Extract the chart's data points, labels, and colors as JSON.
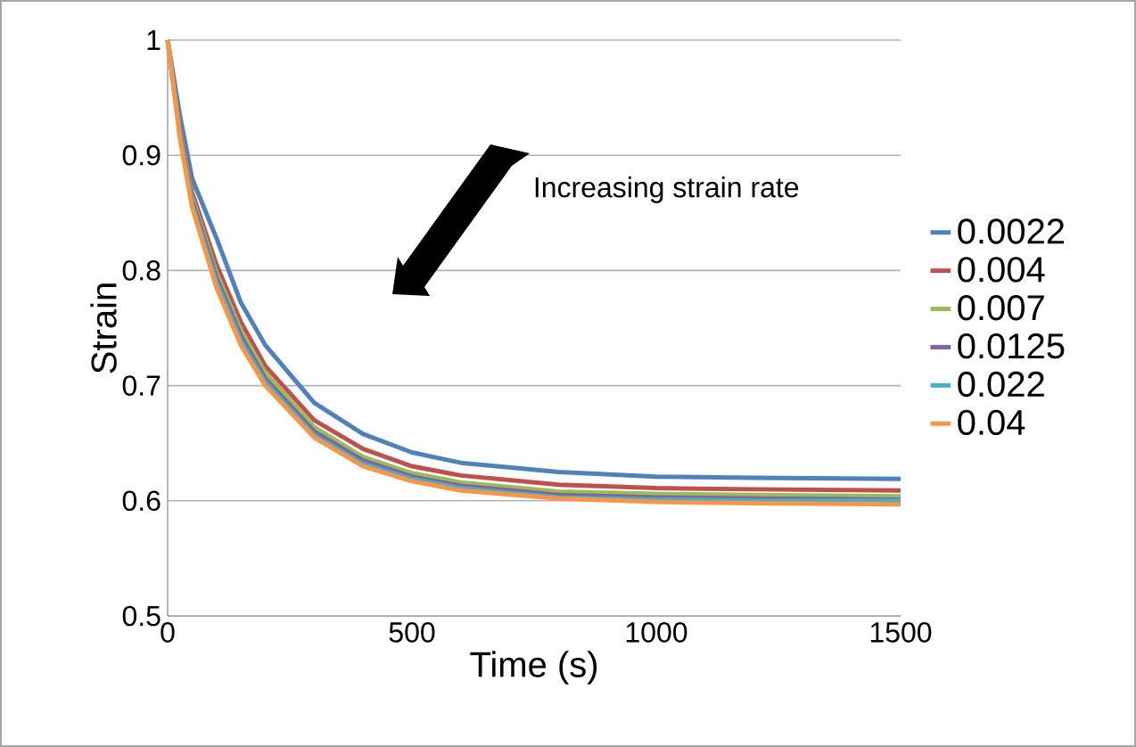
{
  "chart_data": {
    "type": "line",
    "xlabel": "Time (s)",
    "ylabel": "Strain",
    "annotations": [
      "Increasing strain rate"
    ],
    "x": [
      0,
      25,
      50,
      100,
      150,
      200,
      300,
      400,
      500,
      600,
      800,
      1000,
      1200,
      1500
    ],
    "series": [
      {
        "name": "0.0022",
        "color": "#4f81bd",
        "values": [
          1,
          0.935,
          0.88,
          0.828,
          0.772,
          0.735,
          0.685,
          0.658,
          0.642,
          0.633,
          0.625,
          0.621,
          0.62,
          0.619
        ]
      },
      {
        "name": "0.004",
        "color": "#c0504d",
        "values": [
          1,
          0.925,
          0.868,
          0.805,
          0.755,
          0.717,
          0.67,
          0.645,
          0.63,
          0.622,
          0.614,
          0.611,
          0.61,
          0.609
        ]
      },
      {
        "name": "0.007",
        "color": "#9bbb59",
        "values": [
          1,
          0.922,
          0.864,
          0.798,
          0.748,
          0.711,
          0.664,
          0.638,
          0.624,
          0.616,
          0.608,
          0.606,
          0.605,
          0.604
        ]
      },
      {
        "name": "0.0125",
        "color": "#8064a2",
        "values": [
          1,
          0.92,
          0.861,
          0.794,
          0.743,
          0.706,
          0.66,
          0.635,
          0.621,
          0.613,
          0.605,
          0.603,
          0.602,
          0.601
        ]
      },
      {
        "name": "0.022",
        "color": "#4bacc6",
        "values": [
          1,
          0.918,
          0.858,
          0.79,
          0.739,
          0.703,
          0.657,
          0.632,
          0.619,
          0.611,
          0.603,
          0.601,
          0.6,
          0.6
        ]
      },
      {
        "name": "0.04",
        "color": "#f79646",
        "values": [
          1,
          0.915,
          0.855,
          0.785,
          0.735,
          0.7,
          0.655,
          0.63,
          0.617,
          0.609,
          0.602,
          0.599,
          0.598,
          0.597
        ]
      }
    ],
    "xlim": [
      0,
      1500
    ],
    "ylim": [
      0.5,
      1
    ],
    "xticks": [
      0,
      500,
      1000,
      1500
    ],
    "yticks": [
      0.5,
      0.6,
      0.7,
      0.8,
      0.9,
      1
    ],
    "grid": "y",
    "legend": "right"
  }
}
